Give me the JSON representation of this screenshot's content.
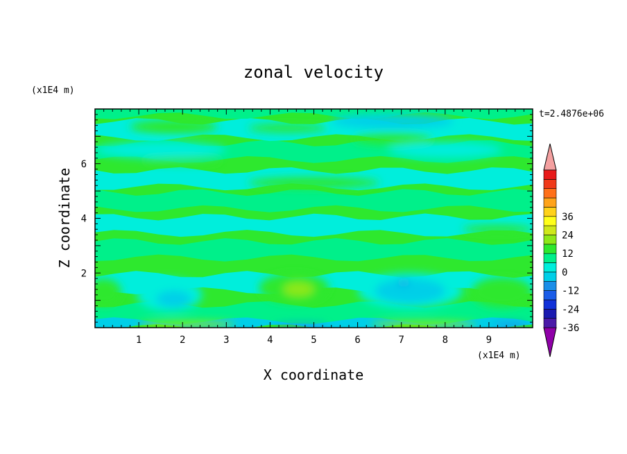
{
  "chart_data": {
    "type": "heatmap",
    "title": "zonal velocity",
    "xlabel": "X coordinate",
    "ylabel": "Z coordinate",
    "x_unit": "(x1E4 m)",
    "y_unit": "(x1E4 m)",
    "time_label": "t=2.4876e+06",
    "xlim": [
      0,
      10
    ],
    "ylim": [
      0,
      8
    ],
    "x_ticks": [
      "1",
      "2",
      "3",
      "4",
      "5",
      "6",
      "7",
      "8",
      "9"
    ],
    "y_ticks": [
      "2",
      "4",
      "6"
    ],
    "colorbar": {
      "min": -42,
      "max": 42,
      "step": 6,
      "labels": [
        "36",
        "24",
        "12",
        "0",
        "-12",
        "-24",
        "-36"
      ],
      "colors": [
        "#8f00a8",
        "#4a1aa8",
        "#1a1ab0",
        "#1030d8",
        "#1a5ce8",
        "#1a8ee8",
        "#00cfe8",
        "#00eedc",
        "#00f08a",
        "#2ee82e",
        "#8ee818",
        "#cfe81a",
        "#ffff1a",
        "#ffd21a",
        "#ffa31a",
        "#ff701a",
        "#f03a1a",
        "#e81a1a",
        "#f4a0a0"
      ]
    },
    "bands": [
      {
        "z": 0.05,
        "level": -12
      },
      {
        "z": 0.3,
        "level": 0
      },
      {
        "z": 1.4,
        "level": -6
      },
      {
        "z": 2.6,
        "level": 0
      },
      {
        "z": 3.5,
        "level": -6
      },
      {
        "z": 4.4,
        "level": 0
      },
      {
        "z": 5.2,
        "level": -6
      },
      {
        "z": 6.2,
        "level": 0
      },
      {
        "z": 7.0,
        "level": -6
      },
      {
        "z": 7.8,
        "level": 0
      }
    ],
    "features": [
      {
        "x": 1.7,
        "z": 1.2,
        "rx": 0.75,
        "rz": 0.6,
        "level": -6
      },
      {
        "x": 1.8,
        "z": 1.05,
        "rx": 0.4,
        "rz": 0.3,
        "level": -12
      },
      {
        "x": 4.55,
        "z": 1.45,
        "rx": 0.8,
        "rz": 0.55,
        "level": 6
      },
      {
        "x": 4.65,
        "z": 1.4,
        "rx": 0.35,
        "rz": 0.25,
        "level": 12
      },
      {
        "x": 7.2,
        "z": 1.35,
        "rx": 1.2,
        "rz": 0.65,
        "level": -6
      },
      {
        "x": 7.2,
        "z": 1.35,
        "rx": 0.8,
        "rz": 0.45,
        "level": -12
      },
      {
        "x": 7.05,
        "z": 1.65,
        "rx": 0.12,
        "rz": 0.08,
        "level": -18
      },
      {
        "x": 9.3,
        "z": 1.3,
        "rx": 0.7,
        "rz": 0.55,
        "level": 6
      },
      {
        "x": 0.2,
        "z": 1.3,
        "rx": 0.4,
        "rz": 0.5,
        "level": 6
      },
      {
        "x": 2.1,
        "z": 0.12,
        "rx": 1.1,
        "rz": 0.12,
        "level": 12
      },
      {
        "x": 4.7,
        "z": 0.06,
        "rx": 0.6,
        "rz": 0.08,
        "level": -18
      },
      {
        "x": 7.5,
        "z": 0.12,
        "rx": 1.2,
        "rz": 0.12,
        "level": 12
      },
      {
        "x": 9.5,
        "z": 0.1,
        "rx": 0.4,
        "rz": 0.08,
        "level": -18
      },
      {
        "x": 1.8,
        "z": 7.35,
        "rx": 1.0,
        "rz": 0.25,
        "level": 6
      },
      {
        "x": 4.4,
        "z": 7.3,
        "rx": 0.9,
        "rz": 0.15,
        "level": 6
      },
      {
        "x": 6.8,
        "z": 7.55,
        "rx": 1.4,
        "rz": 0.25,
        "level": -12
      },
      {
        "x": 6.8,
        "z": 6.9,
        "rx": 0.9,
        "rz": 0.2,
        "level": 6
      },
      {
        "x": 8.0,
        "z": 6.5,
        "rx": 1.3,
        "rz": 0.3,
        "level": -6
      },
      {
        "x": 1.5,
        "z": 6.5,
        "rx": 1.5,
        "rz": 0.3,
        "level": -6
      },
      {
        "x": 2.0,
        "z": 6.1,
        "rx": 0.9,
        "rz": 0.12,
        "level": 6
      },
      {
        "x": 5.0,
        "z": 5.3,
        "rx": 1.5,
        "rz": 0.2,
        "level": 6
      },
      {
        "x": 9.2,
        "z": 3.6,
        "rx": 0.8,
        "rz": 0.15,
        "level": 6
      }
    ]
  }
}
